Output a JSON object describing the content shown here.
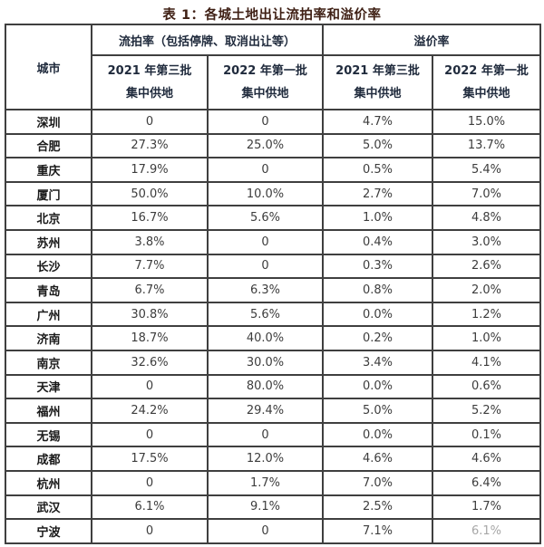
{
  "title": "表 1：各城土地出让流拍率和溢价率",
  "colors": {
    "background": "#ffffff",
    "border": "#3f3f3f",
    "title_text": "#3f2015",
    "header_text": "#202b3d",
    "data_text": "#3d3d3d",
    "faded_text": "#a7a7a7"
  },
  "table": {
    "corner_header": "城市",
    "groups": [
      {
        "label": "流拍率（包括停牌、取消出让等）"
      },
      {
        "label": "溢价率"
      }
    ],
    "subheaders": [
      {
        "line1": "2021 年第三批",
        "line2": "集中供地"
      },
      {
        "line1": "2022 年第一批",
        "line2": "集中供地"
      },
      {
        "line1": "2021 年第三批",
        "line2": "集中供地"
      },
      {
        "line1": "2022 年第一批",
        "line2": "集中供地"
      }
    ],
    "rows": [
      {
        "city": "深圳",
        "values": [
          "0",
          "0",
          "4.7%",
          "15.0%"
        ]
      },
      {
        "city": "合肥",
        "values": [
          "27.3%",
          "25.0%",
          "5.0%",
          "13.7%"
        ]
      },
      {
        "city": "重庆",
        "values": [
          "17.9%",
          "0",
          "0.5%",
          "5.4%"
        ]
      },
      {
        "city": "厦门",
        "values": [
          "50.0%",
          "10.0%",
          "2.7%",
          "7.0%"
        ]
      },
      {
        "city": "北京",
        "values": [
          "16.7%",
          "5.6%",
          "1.0%",
          "4.8%"
        ]
      },
      {
        "city": "苏州",
        "values": [
          "3.8%",
          "0",
          "0.4%",
          "3.0%"
        ]
      },
      {
        "city": "长沙",
        "values": [
          "7.7%",
          "0",
          "0.3%",
          "2.6%"
        ]
      },
      {
        "city": "青岛",
        "values": [
          "6.7%",
          "6.3%",
          "0.8%",
          "2.0%"
        ]
      },
      {
        "city": "广州",
        "values": [
          "30.8%",
          "5.6%",
          "0.0%",
          "1.2%"
        ]
      },
      {
        "city": "济南",
        "values": [
          "18.7%",
          "40.0%",
          "0.2%",
          "1.0%"
        ]
      },
      {
        "city": "南京",
        "values": [
          "32.6%",
          "30.0%",
          "3.4%",
          "4.1%"
        ]
      },
      {
        "city": "天津",
        "values": [
          "0",
          "80.0%",
          "0.0%",
          "0.6%"
        ]
      },
      {
        "city": "福州",
        "values": [
          "24.2%",
          "29.4%",
          "5.0%",
          "5.2%"
        ]
      },
      {
        "city": "无锡",
        "values": [
          "0",
          "0",
          "0.0%",
          "0.1%"
        ]
      },
      {
        "city": "成都",
        "values": [
          "17.5%",
          "12.0%",
          "4.6%",
          "4.6%"
        ]
      },
      {
        "city": "杭州",
        "values": [
          "0",
          "1.7%",
          "7.0%",
          "6.4%"
        ]
      },
      {
        "city": "武汉",
        "values": [
          "6.1%",
          "9.1%",
          "2.5%",
          "1.7%"
        ]
      },
      {
        "city": "宁波",
        "values": [
          "0",
          "0",
          "7.1%",
          "6.1%"
        ],
        "faded": [
          3
        ]
      }
    ]
  }
}
